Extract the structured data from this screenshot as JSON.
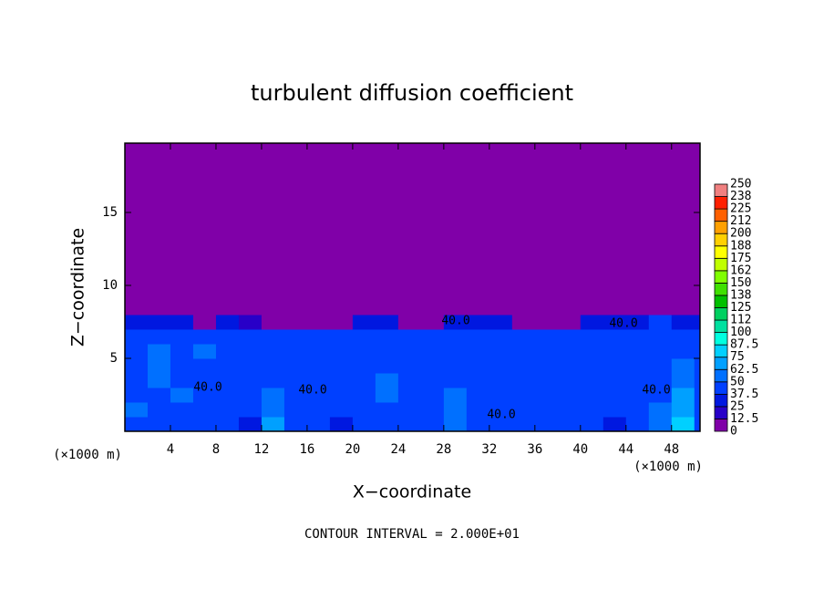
{
  "chart_data": {
    "type": "contour",
    "title": "turbulent diffusion coefficient",
    "xlabel": "X−coordinate",
    "ylabel": "Z−coordinate",
    "x_unit_label": "(×1000 m)",
    "footer": "CONTOUR INTERVAL = 2.000E+01",
    "contour_labels": [
      "40.0",
      "40.0",
      "40.0",
      "40.0",
      "40.0",
      "40.0"
    ],
    "xlim": [
      0,
      50.5
    ],
    "ylim": [
      0,
      19.75
    ],
    "xticks": [
      4,
      8,
      12,
      16,
      20,
      24,
      28,
      32,
      36,
      40,
      44,
      48
    ],
    "yticks": [
      5,
      10,
      15
    ],
    "x_edges": [
      0,
      2,
      4,
      6,
      8,
      10,
      12,
      14,
      16,
      18,
      20,
      22,
      24,
      26,
      28,
      30,
      32,
      34,
      36,
      38,
      40,
      42,
      44,
      46,
      48,
      50,
      50.5
    ],
    "z_edges": [
      0,
      1,
      2,
      3,
      4,
      5,
      6,
      7,
      8,
      19.75
    ],
    "values": [
      [
        45,
        40,
        42,
        38,
        40,
        35,
        70,
        40,
        38,
        35,
        40,
        38,
        42,
        40,
        60,
        40,
        38,
        40,
        42,
        38,
        40,
        35,
        40,
        60,
        75,
        40
      ],
      [
        50,
        42,
        38,
        40,
        45,
        38,
        55,
        40,
        42,
        38,
        45,
        40,
        38,
        42,
        55,
        38,
        40,
        42,
        40,
        45,
        38,
        40,
        42,
        50,
        70,
        45
      ],
      [
        40,
        45,
        50,
        38,
        40,
        42,
        50,
        45,
        38,
        42,
        40,
        55,
        40,
        45,
        50,
        40,
        45,
        38,
        42,
        40,
        45,
        38,
        40,
        45,
        65,
        40
      ],
      [
        38,
        55,
        40,
        45,
        38,
        40,
        48,
        38,
        42,
        40,
        45,
        50,
        38,
        40,
        48,
        45,
        40,
        42,
        38,
        45,
        40,
        42,
        45,
        40,
        60,
        42
      ],
      [
        42,
        50,
        45,
        40,
        42,
        38,
        45,
        40,
        45,
        38,
        40,
        45,
        42,
        38,
        45,
        40,
        42,
        45,
        40,
        42,
        45,
        38,
        40,
        42,
        55,
        40
      ],
      [
        45,
        60,
        40,
        50,
        45,
        42,
        40,
        42,
        40,
        45,
        42,
        40,
        45,
        42,
        40,
        45,
        38,
        40,
        45,
        40,
        42,
        45,
        42,
        40,
        48,
        45
      ],
      [
        40,
        45,
        42,
        40,
        38,
        45,
        42,
        38,
        45,
        40,
        45,
        42,
        40,
        45,
        42,
        40,
        42,
        45,
        42,
        38,
        40,
        42,
        45,
        42,
        40,
        42
      ],
      [
        35,
        30,
        25,
        0,
        30,
        20,
        0,
        0,
        0,
        0,
        25,
        30,
        0,
        0,
        30,
        35,
        25,
        0,
        0,
        0,
        30,
        25,
        35,
        40,
        35,
        30
      ],
      [
        0,
        0,
        0,
        0,
        0,
        0,
        0,
        0,
        0,
        0,
        0,
        0,
        0,
        0,
        0,
        0,
        0,
        0,
        0,
        0,
        0,
        0,
        0,
        0,
        0,
        0
      ]
    ],
    "colorbar_ticks": [
      0,
      12.5,
      25,
      37.5,
      50,
      62.5,
      75,
      87.5,
      100,
      112,
      125,
      138,
      150,
      162,
      175,
      188,
      200,
      212,
      225,
      238,
      250
    ],
    "colors": [
      "#8000a8",
      "#2800c8",
      "#0018e0",
      "#0040ff",
      "#0070ff",
      "#00a0ff",
      "#00d0ff",
      "#00ffe0",
      "#00e0a0",
      "#00d060",
      "#00c000",
      "#40e000",
      "#80ff00",
      "#c0ff00",
      "#ffff00",
      "#ffd000",
      "#ffa000",
      "#ff6000",
      "#ff2000",
      "#f08080"
    ]
  }
}
